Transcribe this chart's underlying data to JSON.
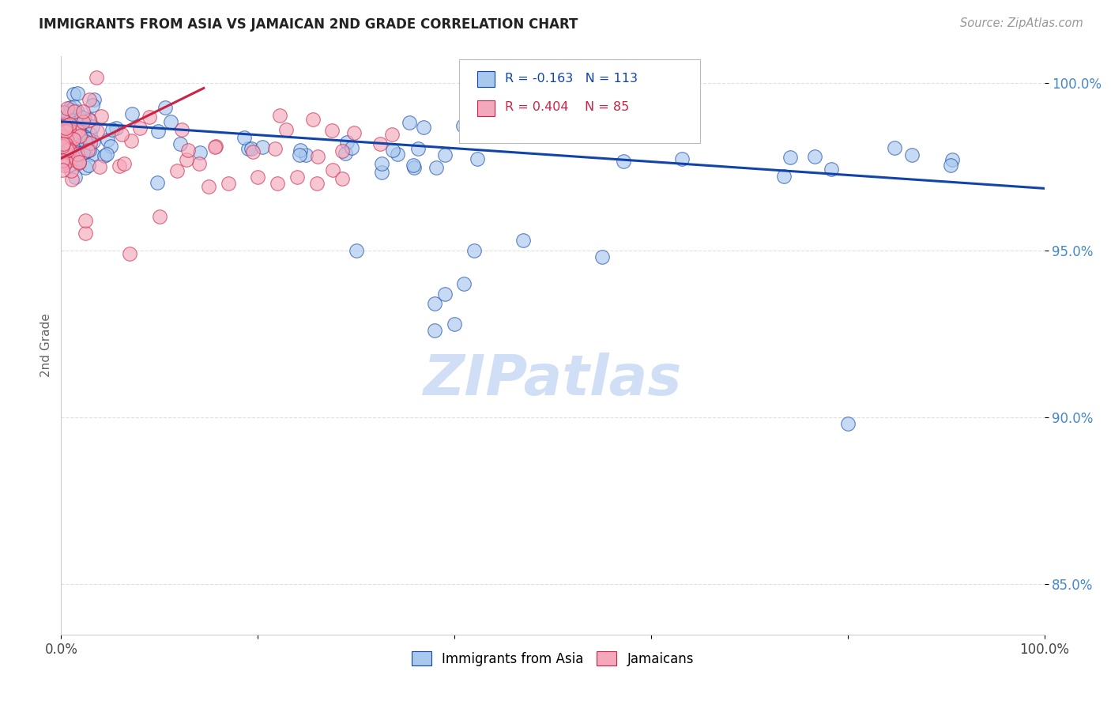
{
  "title": "IMMIGRANTS FROM ASIA VS JAMAICAN 2ND GRADE CORRELATION CHART",
  "source_text": "Source: ZipAtlas.com",
  "ylabel": "2nd Grade",
  "legend_label_blue": "Immigrants from Asia",
  "legend_label_pink": "Jamaicans",
  "r_blue": -0.163,
  "n_blue": 113,
  "r_pink": 0.404,
  "n_pink": 85,
  "xlim": [
    0.0,
    1.0
  ],
  "ylim": [
    0.835,
    1.008
  ],
  "yticks": [
    0.85,
    0.9,
    0.95,
    1.0
  ],
  "ytick_labels": [
    "85.0%",
    "90.0%",
    "95.0%",
    "100.0%"
  ],
  "xtick_labels": [
    "0.0%",
    "",
    "",
    "",
    "",
    "100.0%"
  ],
  "color_blue": "#A8C8EE",
  "color_pink": "#F4A8BC",
  "line_color_blue": "#1144AA",
  "line_color_pink": "#CC2244",
  "watermark_color": "#D0DFF5",
  "background_color": "#FFFFFF",
  "blue_line": [
    0.0,
    1.0,
    0.9885,
    0.9685
  ],
  "pink_line": [
    0.0,
    0.145,
    0.9775,
    0.9985
  ],
  "seed": 123
}
